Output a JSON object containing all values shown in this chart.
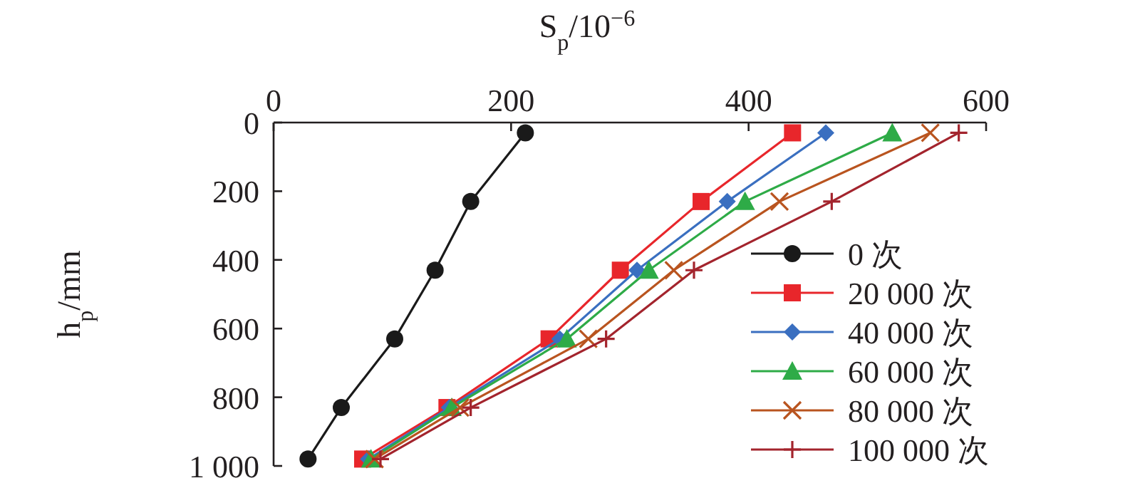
{
  "chart_data": {
    "type": "line",
    "xlabel": "S$_{p}$/10$^{−6}$",
    "ylabel": "h$_{p}$/mm",
    "xlim": [
      0,
      600
    ],
    "xticks": [
      0,
      200,
      400,
      600
    ],
    "ylim": [
      1000,
      0
    ],
    "yticks": [
      0,
      200,
      400,
      600,
      800,
      {
        "value": 1000,
        "label": "1 000"
      }
    ],
    "grid": false,
    "legend": "right",
    "series": [
      {
        "name": "0 次",
        "color": "#1a1a1a",
        "marker": "circle",
        "x": [
          212,
          166,
          136,
          102,
          57,
          29
        ],
        "values": [
          30,
          230,
          430,
          630,
          830,
          980
        ]
      },
      {
        "name": "20 000 次",
        "color": "#e8262b",
        "marker": "square",
        "x": [
          437,
          360,
          292,
          232,
          146,
          75
        ],
        "values": [
          30,
          230,
          430,
          630,
          830,
          980
        ]
      },
      {
        "name": "40 000 次",
        "color": "#3a6fc0",
        "marker": "diamond",
        "x": [
          465,
          382,
          306,
          241,
          148,
          80
        ],
        "values": [
          30,
          230,
          430,
          630,
          830,
          980
        ]
      },
      {
        "name": "60 000 次",
        "color": "#2eab47",
        "marker": "triangle",
        "x": [
          521,
          397,
          316,
          247,
          150,
          82
        ],
        "values": [
          30,
          230,
          430,
          630,
          830,
          980
        ]
      },
      {
        "name": "80 000 次",
        "color": "#b9541f",
        "marker": "cross",
        "x": [
          553,
          426,
          337,
          265,
          157,
          85
        ],
        "values": [
          30,
          230,
          430,
          630,
          830,
          980
        ]
      },
      {
        "name": "100 000 次",
        "color": "#a3242d",
        "marker": "plus",
        "x": [
          577,
          470,
          354,
          280,
          166,
          90
        ],
        "values": [
          30,
          230,
          430,
          630,
          830,
          980
        ]
      }
    ]
  }
}
